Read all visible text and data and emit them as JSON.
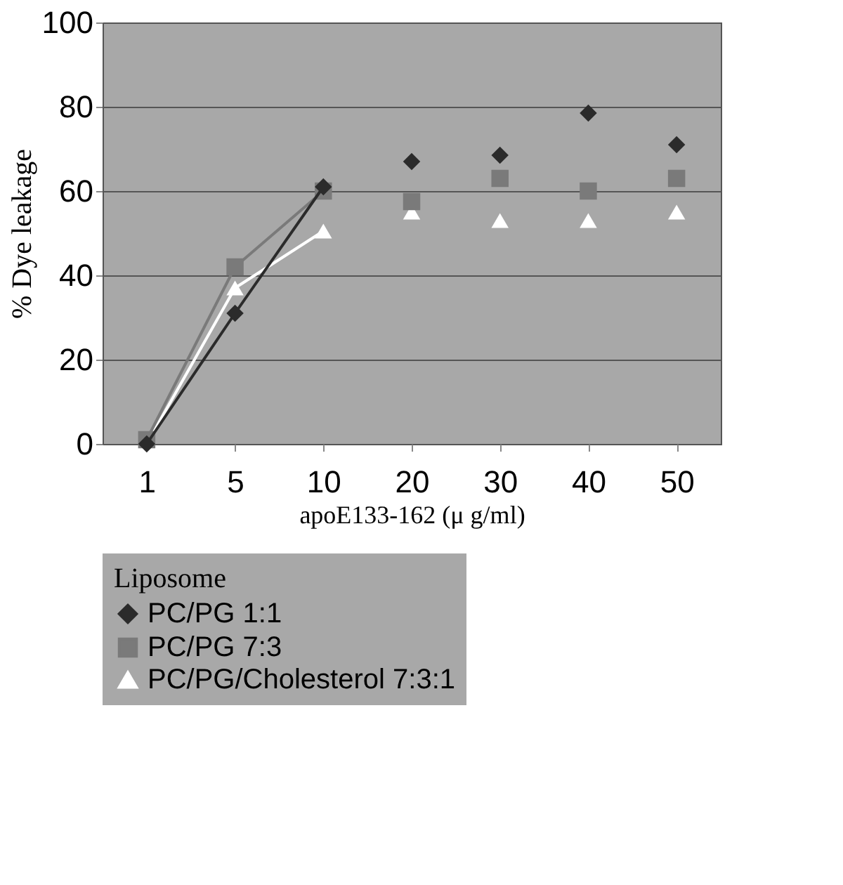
{
  "chart_data": {
    "type": "line",
    "xlabel": "apoE133-162 (μ g/ml)",
    "ylabel": "% Dye leakage",
    "legend_title": "Liposome",
    "categories": [
      "1",
      "5",
      "10",
      "20",
      "30",
      "40",
      "50"
    ],
    "series": [
      {
        "name": "PC/PG 1:1",
        "color": "#2b2b2b",
        "marker": "diamond",
        "values": [
          0,
          31,
          61,
          null,
          null,
          null,
          null
        ]
      },
      {
        "name": "PC/PG 7:3",
        "color": "#7a7a7a",
        "marker": "square",
        "values": [
          1,
          42,
          60,
          null,
          null,
          null,
          null
        ]
      },
      {
        "name": "PC/PG/Cholesterol 7:3:1",
        "color": "#ffffff",
        "marker": "triangle",
        "values": [
          0,
          37,
          50.5,
          null,
          null,
          null,
          null
        ]
      },
      {
        "type": "scatter",
        "color": "#2b2b2b",
        "marker": "diamond",
        "values": [
          null,
          null,
          null,
          67,
          68.5,
          78.5,
          71
        ]
      },
      {
        "type": "scatter",
        "color": "#7a7a7a",
        "marker": "square",
        "values": [
          null,
          null,
          null,
          57.5,
          63,
          60,
          63
        ]
      },
      {
        "type": "scatter",
        "color": "#ffffff",
        "marker": "triangle",
        "values": [
          null,
          null,
          null,
          55,
          53,
          53,
          55
        ]
      }
    ],
    "ylim": [
      0,
      100
    ],
    "yticks": [
      0,
      20,
      40,
      60,
      80,
      100
    ],
    "grid": "y",
    "legend": "bottom"
  }
}
